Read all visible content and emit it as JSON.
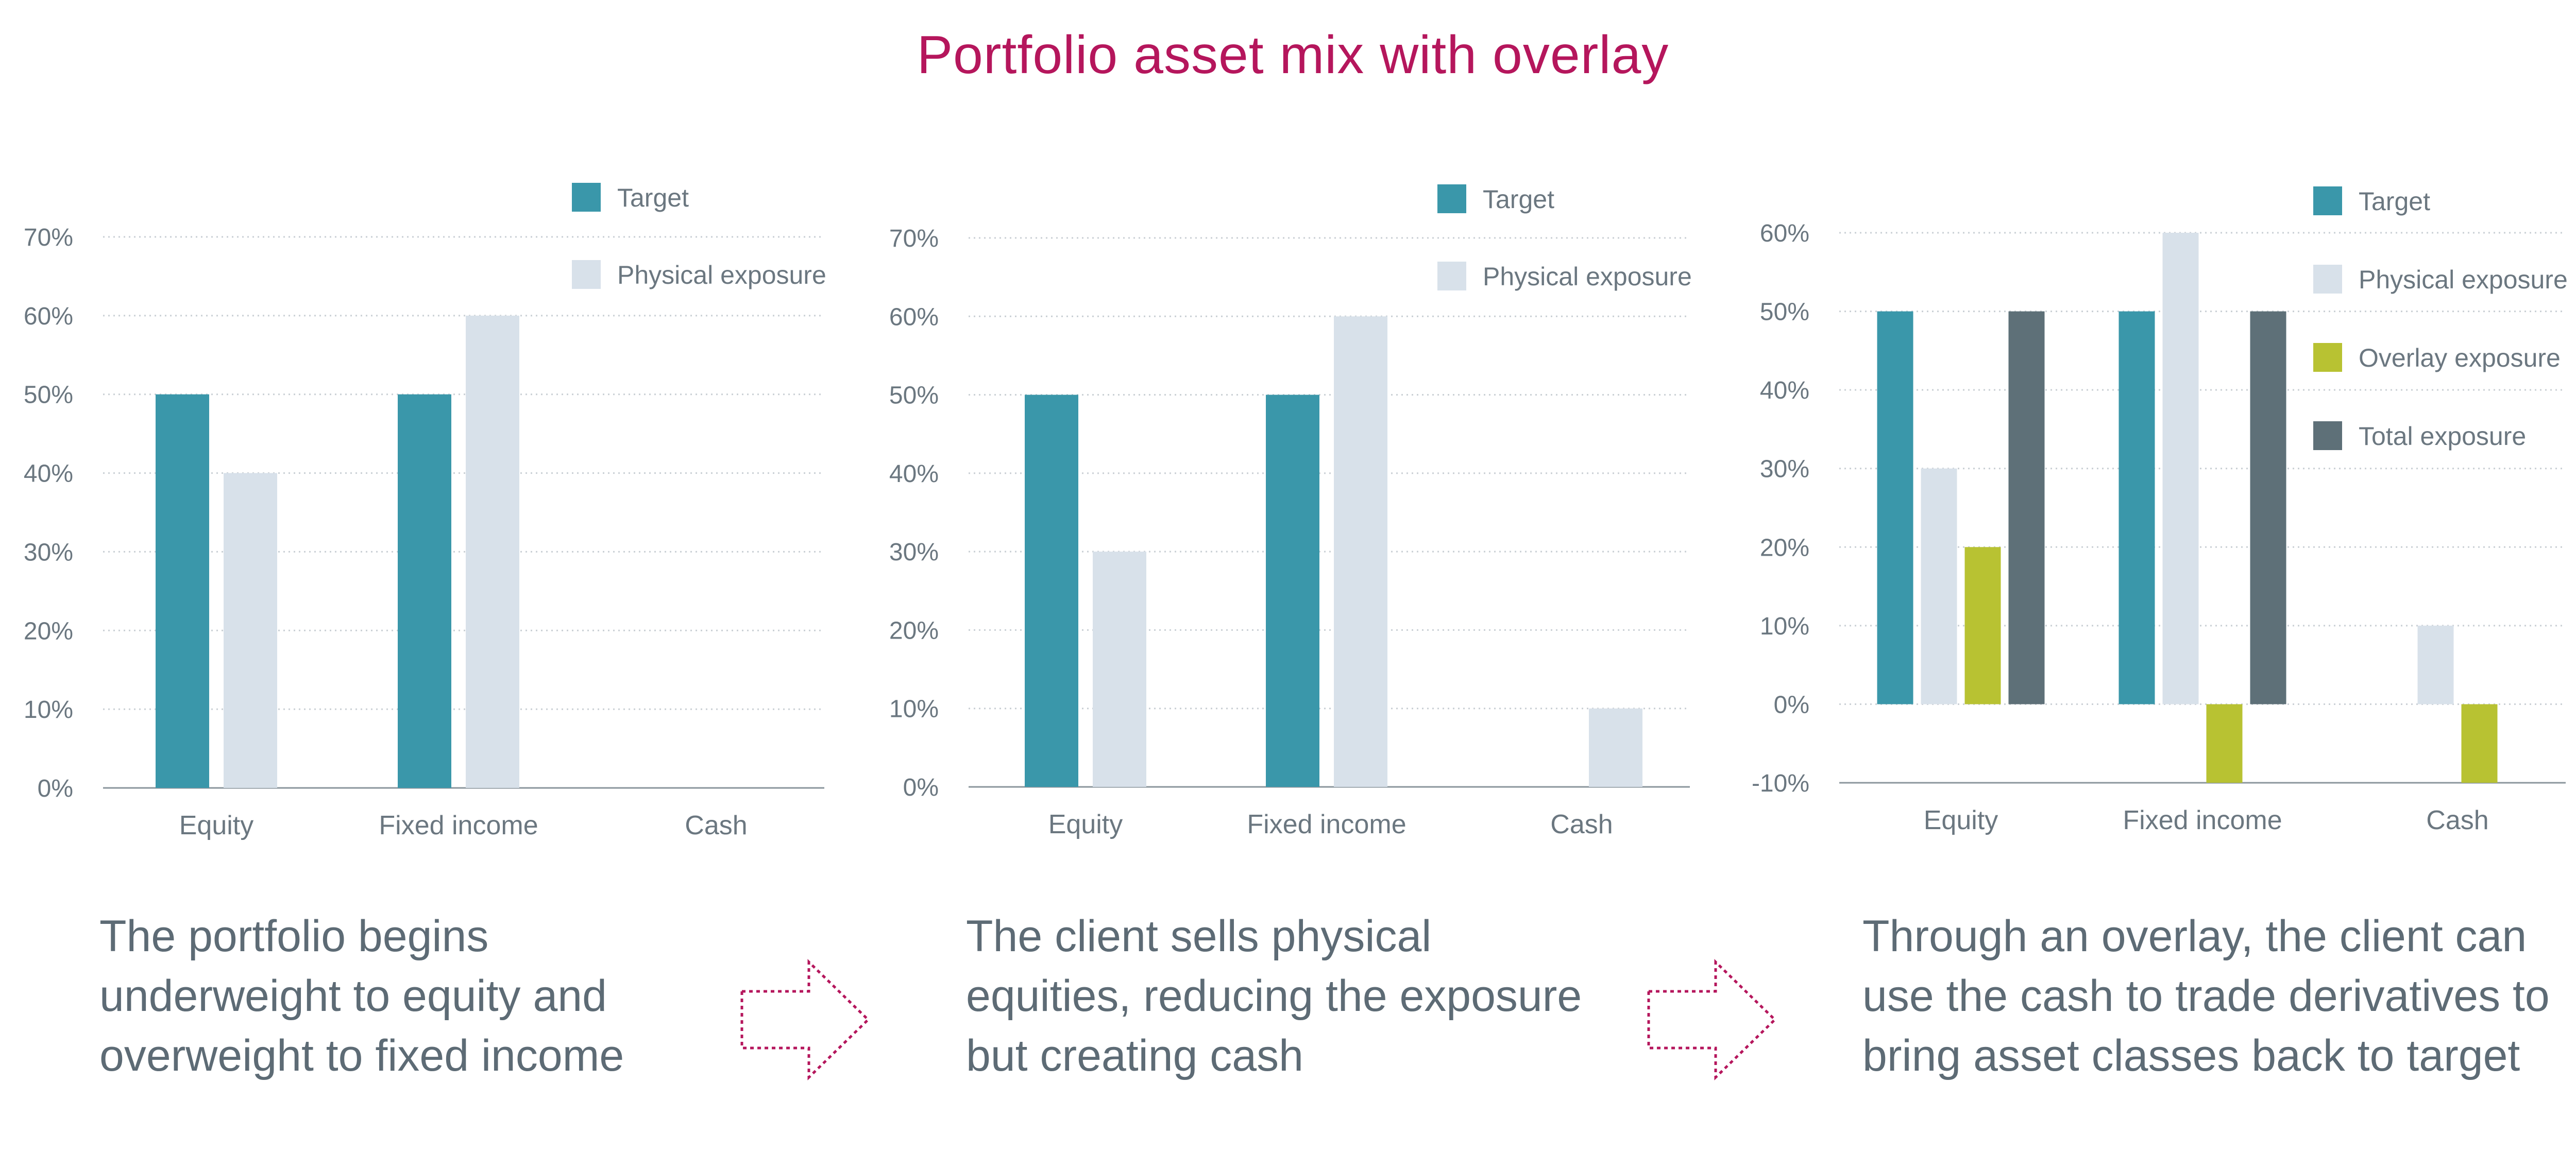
{
  "title": "Portfolio asset mix with overlay",
  "colors": {
    "title": "#b5165c",
    "target": "#3a97aa",
    "physical": "#d8e1ea",
    "overlay": "#b8c232",
    "total": "#5e7078",
    "text": "#6b7780",
    "arrow": "#b5165c"
  },
  "captions": [
    [
      "The portfolio begins",
      "underweight to equity and",
      "overweight to fixed income"
    ],
    [
      "The client sells physical",
      "equities, reducing the exposure",
      "but creating cash"
    ],
    [
      "Through an overlay, the client can",
      "use the cash to trade derivatives to",
      "bring asset classes back to target"
    ]
  ],
  "chart_data": [
    {
      "type": "bar",
      "categories": [
        "Equity",
        "Fixed income",
        "Cash"
      ],
      "ylim": [
        0,
        70
      ],
      "yticks": [
        0,
        10,
        20,
        30,
        40,
        50,
        60,
        70
      ],
      "ytick_format": "%",
      "grid": true,
      "legend": "top-right",
      "series": [
        {
          "name": "Target",
          "color": "#3a97aa",
          "values": [
            50,
            50,
            null
          ]
        },
        {
          "name": "Physical exposure",
          "color": "#d8e1ea",
          "values": [
            40,
            60,
            null
          ]
        }
      ]
    },
    {
      "type": "bar",
      "categories": [
        "Equity",
        "Fixed income",
        "Cash"
      ],
      "ylim": [
        0,
        70
      ],
      "yticks": [
        0,
        10,
        20,
        30,
        40,
        50,
        60,
        70
      ],
      "ytick_format": "%",
      "grid": true,
      "legend": "top-right",
      "series": [
        {
          "name": "Target",
          "color": "#3a97aa",
          "values": [
            50,
            50,
            null
          ]
        },
        {
          "name": "Physical exposure",
          "color": "#d8e1ea",
          "values": [
            30,
            60,
            10
          ]
        }
      ]
    },
    {
      "type": "bar",
      "categories": [
        "Equity",
        "Fixed income",
        "Cash"
      ],
      "ylim": [
        -10,
        60
      ],
      "yticks": [
        -10,
        0,
        10,
        20,
        30,
        40,
        50,
        60
      ],
      "ytick_format": "%",
      "grid": true,
      "legend": "top-right",
      "series": [
        {
          "name": "Target",
          "color": "#3a97aa",
          "values": [
            50,
            50,
            null
          ]
        },
        {
          "name": "Physical exposure",
          "color": "#d8e1ea",
          "values": [
            30,
            60,
            10
          ]
        },
        {
          "name": "Overlay exposure",
          "color": "#b8c232",
          "values": [
            20,
            -10,
            -10
          ]
        },
        {
          "name": "Total exposure",
          "color": "#5e7078",
          "values": [
            50,
            50,
            null
          ]
        }
      ]
    }
  ]
}
